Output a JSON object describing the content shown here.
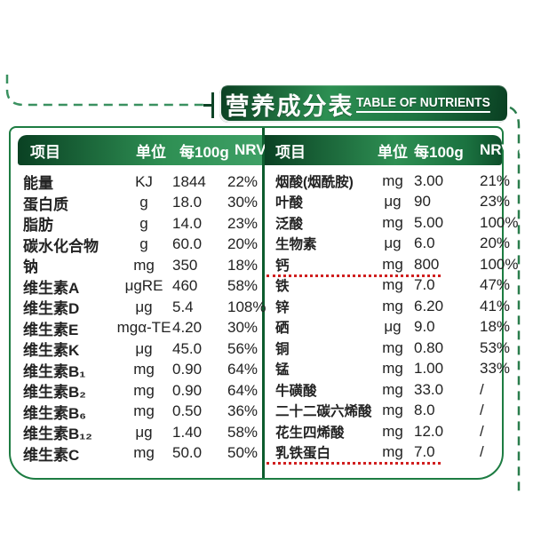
{
  "banner": {
    "title_zh": "营养成分表",
    "title_en": "TABLE OF NUTRIENTS"
  },
  "headers": {
    "item": "项目",
    "unit": "单位",
    "per100g": "每100g",
    "nrv": "NRV%"
  },
  "left_rows": [
    {
      "item": "能量",
      "unit": "KJ",
      "value": "1844",
      "nrv": "22%"
    },
    {
      "item": "蛋白质",
      "unit": "g",
      "value": "18.0",
      "nrv": "30%"
    },
    {
      "item": "脂肪",
      "unit": "g",
      "value": "14.0",
      "nrv": "23%"
    },
    {
      "item": "碳水化合物",
      "unit": "g",
      "value": "60.0",
      "nrv": "20%"
    },
    {
      "item": "钠",
      "unit": "mg",
      "value": "350",
      "nrv": "18%"
    },
    {
      "item": "维生素A",
      "unit": "μgRE",
      "value": "460",
      "nrv": "58%"
    },
    {
      "item": "维生素D",
      "unit": "μg",
      "value": "5.4",
      "nrv": "108%"
    },
    {
      "item": "维生素E",
      "unit": "mgα-TE",
      "value": "4.20",
      "nrv": "30%"
    },
    {
      "item": "维生素K",
      "unit": "μg",
      "value": "45.0",
      "nrv": "56%"
    },
    {
      "item": "维生素B₁",
      "unit": "mg",
      "value": "0.90",
      "nrv": "64%"
    },
    {
      "item": "维生素B₂",
      "unit": "mg",
      "value": "0.90",
      "nrv": "64%"
    },
    {
      "item": "维生素B₆",
      "unit": "mg",
      "value": "0.50",
      "nrv": "36%"
    },
    {
      "item": "维生素B₁₂",
      "unit": "μg",
      "value": "1.40",
      "nrv": "58%"
    },
    {
      "item": "维生素C",
      "unit": "mg",
      "value": "50.0",
      "nrv": "50%"
    }
  ],
  "right_rows": [
    {
      "item": "烟酸(烟酰胺)",
      "unit": "mg",
      "value": "3.00",
      "nrv": "21%"
    },
    {
      "item": "叶酸",
      "unit": "μg",
      "value": "90",
      "nrv": "23%"
    },
    {
      "item": "泛酸",
      "unit": "mg",
      "value": "5.00",
      "nrv": "100%"
    },
    {
      "item": "生物素",
      "unit": "μg",
      "value": "6.0",
      "nrv": "20%"
    },
    {
      "item": "钙",
      "unit": "mg",
      "value": "800",
      "nrv": "100%",
      "red_underline": true
    },
    {
      "item": "铁",
      "unit": "mg",
      "value": "7.0",
      "nrv": "47%"
    },
    {
      "item": "锌",
      "unit": "mg",
      "value": "6.20",
      "nrv": "41%"
    },
    {
      "item": "硒",
      "unit": "μg",
      "value": "9.0",
      "nrv": "18%"
    },
    {
      "item": "铜",
      "unit": "mg",
      "value": "0.80",
      "nrv": "53%"
    },
    {
      "item": "锰",
      "unit": "mg",
      "value": "1.00",
      "nrv": "33%"
    },
    {
      "item": "牛磺酸",
      "unit": "mg",
      "value": "33.0",
      "nrv": "/"
    },
    {
      "item": "二十二碳六烯酸",
      "unit": "mg",
      "value": "8.0",
      "nrv": "/"
    },
    {
      "item": "花生四烯酸",
      "unit": "mg",
      "value": "12.0",
      "nrv": "/"
    },
    {
      "item": "乳铁蛋白",
      "unit": "mg",
      "value": "7.0",
      "nrv": "/",
      "red_underline": true
    }
  ],
  "colors": {
    "banner_green_dark": "#0a3f22",
    "banner_green": "#2d8f52",
    "panel_border_green": "#1d7c42",
    "divider_green": "#0d5c2e",
    "dash_green": "#3a9160",
    "text": "#222222",
    "red_dotted": "#d01f1f"
  }
}
